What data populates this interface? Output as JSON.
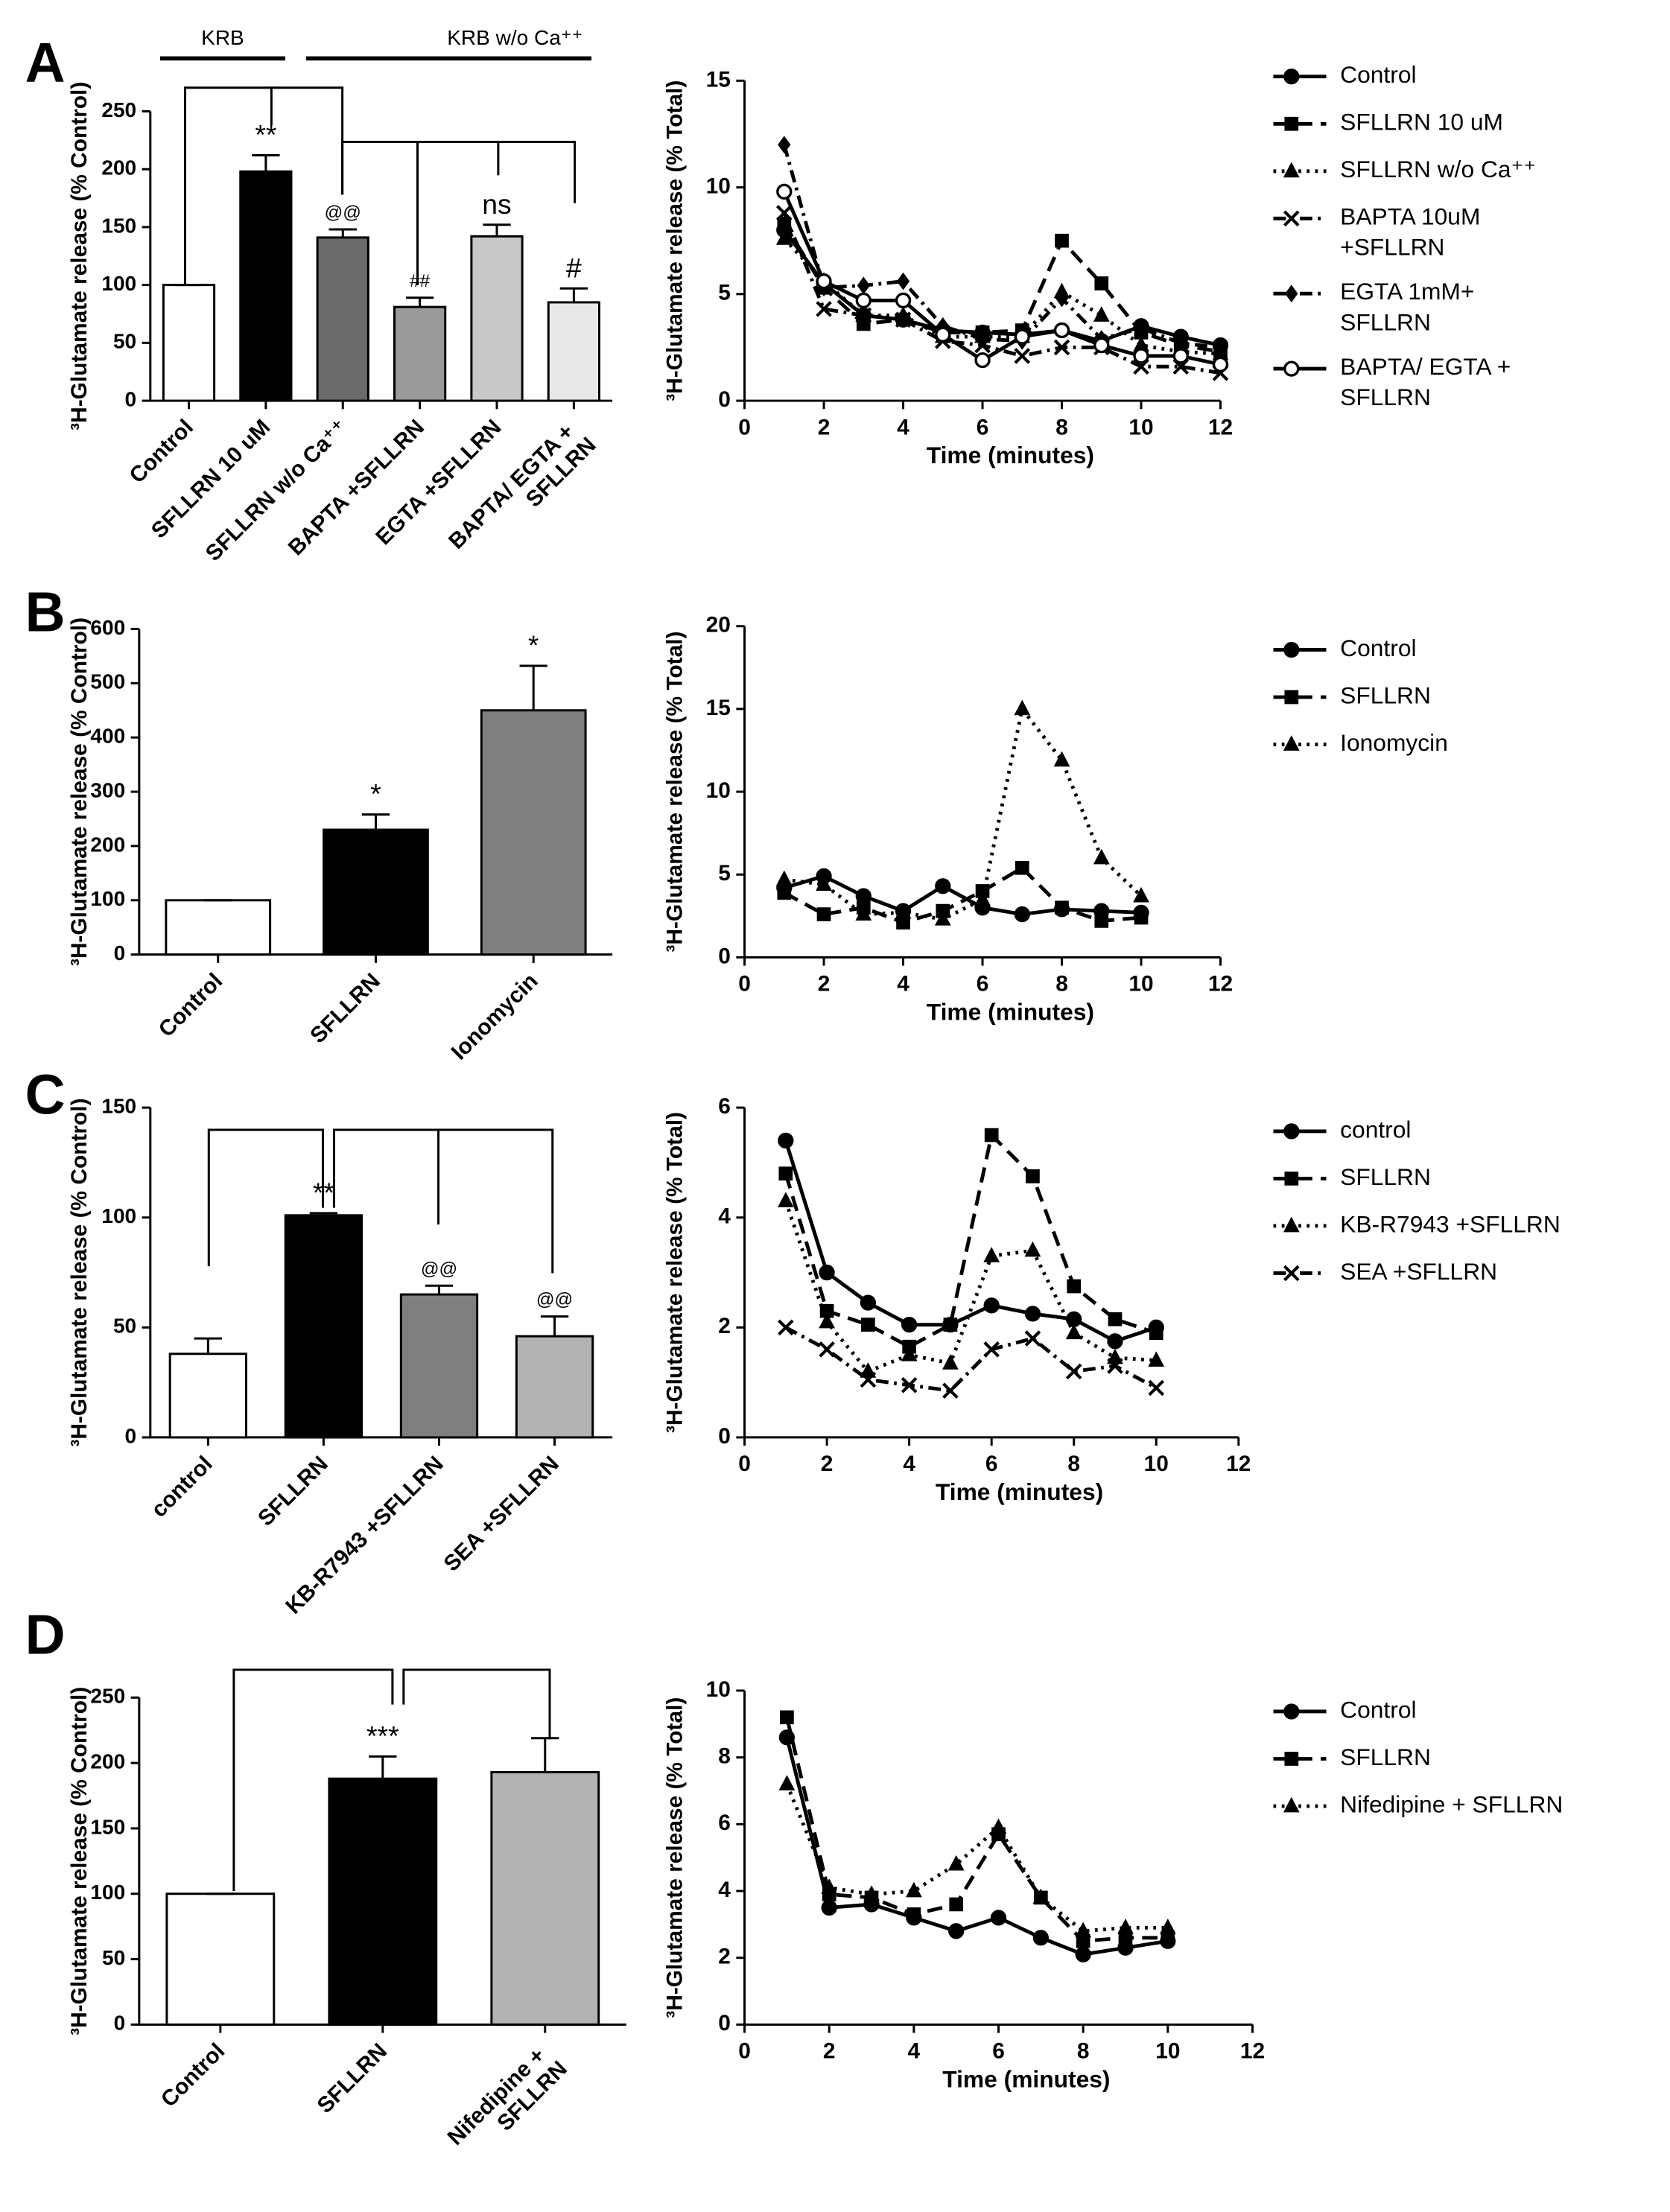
{
  "chart_data": [
    {
      "type": "bar",
      "panel": "A",
      "ylabel": "³H-Glutamate release (% Control)",
      "group_labels": [
        "KRB",
        "KRB w/o Ca⁺⁺"
      ],
      "categories": [
        "Control",
        "SFLLRN 10 uM",
        "SFLLRN  w/o Ca⁺⁺",
        "BAPTA +SFLLRN",
        "EGTA +SFLLRN",
        "BAPTA/ EGTA + SFLLRN"
      ],
      "values": [
        100,
        198,
        141,
        81,
        142,
        85
      ],
      "errors": [
        0,
        14,
        7,
        8,
        10,
        12
      ],
      "annotations": [
        null,
        "**",
        "@@",
        "##",
        "ns",
        "#"
      ],
      "colors": [
        "#ffffff",
        "#000000",
        "#6b6b6b",
        "#9a9a9a",
        "#c8c8c8",
        "#e8e8e8"
      ],
      "ylim": [
        0,
        250
      ],
      "yticks": [
        0,
        50,
        100,
        150,
        200,
        250
      ]
    },
    {
      "type": "line",
      "xlabel": "Time (minutes)",
      "ylabel": "³H-Glutamate release (% Total)",
      "x": [
        1,
        2,
        3,
        4,
        5,
        6,
        7,
        8,
        9,
        10,
        11,
        12
      ],
      "xlim": [
        0,
        12
      ],
      "xticks": [
        0,
        2,
        4,
        6,
        8,
        10,
        12
      ],
      "ylim": [
        0,
        15
      ],
      "yticks": [
        0,
        5,
        10,
        15
      ],
      "series": [
        {
          "name": "Control",
          "color": "#000000",
          "marker": "circle",
          "dash": "solid",
          "values": [
            8.0,
            5.5,
            4.0,
            3.8,
            3.3,
            3.2,
            3.1,
            3.3,
            2.8,
            3.5,
            3.0,
            2.6
          ]
        },
        {
          "name": "SFLLRN 10 uM",
          "color": "#000000",
          "marker": "square",
          "dash": "dashed",
          "values": [
            8.3,
            5.3,
            3.6,
            3.8,
            3.2,
            3.2,
            3.3,
            7.5,
            5.5,
            3.2,
            2.6,
            2.3
          ]
        },
        {
          "name": "SFLLRN  w/o Ca⁺⁺",
          "color": "#000000",
          "marker": "triangle",
          "dash": "dotted",
          "values": [
            7.6,
            5.6,
            4.0,
            4.0,
            3.0,
            3.0,
            3.0,
            5.1,
            4.0,
            2.6,
            2.3,
            2.2
          ]
        },
        {
          "name": "BAPTA 10uM +SFLLRN",
          "color": "#000000",
          "marker": "x",
          "dash": "dashdot",
          "values": [
            8.8,
            4.3,
            4.0,
            3.8,
            2.8,
            2.6,
            2.1,
            2.5,
            2.5,
            1.6,
            1.6,
            1.3
          ]
        },
        {
          "name": "EGTA 1mM+ SFLLRN",
          "color": "#000000",
          "marker": "diamond",
          "dash": "dashdot",
          "values": [
            12.0,
            5.3,
            5.4,
            5.6,
            3.5,
            2.9,
            2.8,
            4.8,
            2.9,
            3.4,
            2.7,
            2.5
          ]
        },
        {
          "name": "BAPTA/ EGTA + SFLLRN",
          "color": "#000000",
          "marker": "open-circle",
          "dash": "solid",
          "values": [
            9.8,
            5.6,
            4.7,
            4.7,
            3.1,
            1.9,
            3.0,
            3.3,
            2.6,
            2.1,
            2.1,
            1.7
          ]
        }
      ]
    },
    {
      "type": "bar",
      "panel": "B",
      "ylabel": "³H-Glutamate release (% Control)",
      "categories": [
        "Control",
        "SFLLRN",
        "Ionomycin"
      ],
      "values": [
        100,
        230,
        450
      ],
      "errors": [
        0,
        28,
        82
      ],
      "annotations": [
        null,
        "*",
        "*"
      ],
      "colors": [
        "#ffffff",
        "#000000",
        "#808080"
      ],
      "ylim": [
        0,
        600
      ],
      "yticks": [
        0,
        100,
        200,
        300,
        400,
        500,
        600
      ]
    },
    {
      "type": "line",
      "xlabel": "Time (minutes)",
      "ylabel": "³H-Glutamate release (% Total)",
      "x": [
        1,
        2,
        3,
        4,
        5,
        6,
        7,
        8,
        9,
        10
      ],
      "xlim": [
        0,
        12
      ],
      "xticks": [
        0,
        2,
        4,
        6,
        8,
        10,
        12
      ],
      "ylim": [
        0,
        20
      ],
      "yticks": [
        0,
        5,
        10,
        15,
        20
      ],
      "series": [
        {
          "name": "Control",
          "color": "#000000",
          "marker": "circle",
          "dash": "solid",
          "values": [
            4.2,
            4.9,
            3.7,
            2.8,
            4.3,
            3.0,
            2.6,
            2.9,
            2.8,
            2.7
          ]
        },
        {
          "name": "SFLLRN",
          "color": "#000000",
          "marker": "square",
          "dash": "dashed",
          "values": [
            3.9,
            2.6,
            3.0,
            2.1,
            2.8,
            4.0,
            5.4,
            3.0,
            2.2,
            2.4
          ]
        },
        {
          "name": "Ionomycin",
          "color": "#000000",
          "marker": "triangle",
          "dash": "dotted",
          "values": [
            4.7,
            4.4,
            2.6,
            2.7,
            2.3,
            3.5,
            15.0,
            11.9,
            6.0,
            3.7
          ]
        }
      ]
    },
    {
      "type": "bar",
      "panel": "C",
      "ylabel": "³H-Glutamate release (% Control)",
      "categories": [
        "control",
        "SFLLRN",
        "KB-R7943 +SFLLRN",
        "SEA +SFLLRN"
      ],
      "values": [
        38,
        101,
        65,
        46
      ],
      "errors": [
        7,
        1,
        4,
        9
      ],
      "annotations": [
        null,
        "**",
        "@@",
        "@@"
      ],
      "colors": [
        "#ffffff",
        "#000000",
        "#7f7f7f",
        "#b3b3b3"
      ],
      "ylim": [
        0,
        150
      ],
      "yticks": [
        0,
        50,
        100,
        150
      ]
    },
    {
      "type": "line",
      "xlabel": "Time (minutes)",
      "ylabel": "³H-Glutamate release (% Total)",
      "x": [
        1,
        2,
        3,
        4,
        5,
        6,
        7,
        8,
        9,
        10
      ],
      "xlim": [
        0,
        12
      ],
      "xticks": [
        0,
        2,
        4,
        6,
        8,
        10,
        12
      ],
      "ylim": [
        0,
        6
      ],
      "yticks": [
        0,
        2,
        4,
        6
      ],
      "series": [
        {
          "name": "control",
          "color": "#000000",
          "marker": "circle",
          "dash": "solid",
          "values": [
            5.4,
            3.0,
            2.45,
            2.05,
            2.05,
            2.4,
            2.25,
            2.15,
            1.75,
            2.0
          ]
        },
        {
          "name": "SFLLRN",
          "color": "#000000",
          "marker": "square",
          "dash": "dashed",
          "values": [
            4.8,
            2.3,
            2.05,
            1.65,
            2.05,
            5.5,
            4.75,
            2.75,
            2.15,
            1.9
          ]
        },
        {
          "name": "KB-R7943 +SFLLRN",
          "color": "#000000",
          "marker": "triangle",
          "dash": "dotted",
          "values": [
            4.3,
            2.1,
            1.2,
            1.5,
            1.35,
            3.3,
            3.4,
            1.9,
            1.45,
            1.4
          ]
        },
        {
          "name": "SEA +SFLLRN",
          "color": "#000000",
          "marker": "x",
          "dash": "dashdot",
          "values": [
            2.0,
            1.6,
            1.05,
            0.95,
            0.85,
            1.6,
            1.8,
            1.2,
            1.3,
            0.9
          ]
        }
      ]
    },
    {
      "type": "bar",
      "panel": "D",
      "ylabel": "³H-Glutamate release (% Control)",
      "categories": [
        "Control",
        "SFLLRN",
        "Nifedipine + SFLLRN"
      ],
      "values": [
        100,
        188,
        193
      ],
      "errors": [
        0,
        17,
        26
      ],
      "annotations": [
        null,
        "***",
        null
      ],
      "colors": [
        "#ffffff",
        "#000000",
        "#b3b3b3"
      ],
      "ylim": [
        0,
        250
      ],
      "yticks": [
        0,
        50,
        100,
        150,
        200,
        250
      ]
    },
    {
      "type": "line",
      "xlabel": "Time (minutes)",
      "ylabel": "³H-Glutamate release (% Total)",
      "x": [
        1,
        2,
        3,
        4,
        5,
        6,
        7,
        8,
        9,
        10
      ],
      "xlim": [
        0,
        12
      ],
      "xticks": [
        0,
        2,
        4,
        6,
        8,
        10,
        12
      ],
      "ylim": [
        0,
        10
      ],
      "yticks": [
        0,
        2,
        4,
        6,
        8,
        10
      ],
      "series": [
        {
          "name": "Control",
          "color": "#000000",
          "marker": "circle",
          "dash": "solid",
          "values": [
            8.6,
            3.5,
            3.6,
            3.2,
            2.8,
            3.2,
            2.6,
            2.1,
            2.3,
            2.5
          ]
        },
        {
          "name": "SFLLRN",
          "color": "#000000",
          "marker": "square",
          "dash": "dashed",
          "values": [
            9.2,
            3.9,
            3.8,
            3.3,
            3.6,
            5.7,
            3.8,
            2.5,
            2.6,
            2.6
          ]
        },
        {
          "name": "Nifedipine + SFLLRN",
          "color": "#000000",
          "marker": "triangle",
          "dash": "dotted",
          "values": [
            7.2,
            4.1,
            3.9,
            4.0,
            4.8,
            5.9,
            3.8,
            2.8,
            2.9,
            2.9
          ]
        }
      ]
    }
  ]
}
